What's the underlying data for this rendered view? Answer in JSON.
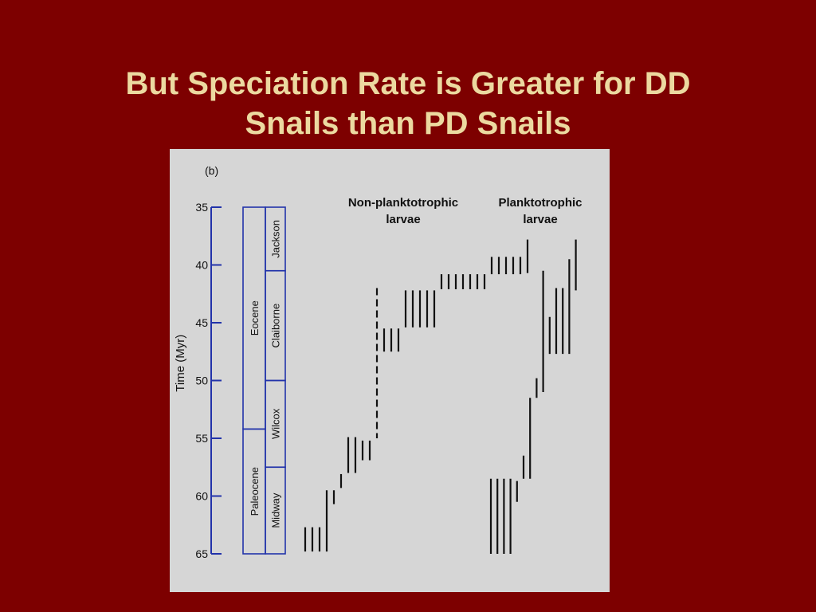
{
  "slide": {
    "title_line1": "But Speciation Rate is Greater for DD",
    "title_line2": "Snails than PD Snails"
  },
  "colors": {
    "background": "#7d0000",
    "title": "#ecd9a0",
    "figure_background": "#d6d6d6",
    "timescale": "#2233aa",
    "ranges": "#111111"
  },
  "chart_data": {
    "type": "range",
    "panel_label": "(b)",
    "ylabel": "Time (Myr)",
    "ylim": [
      35,
      65
    ],
    "yticks": [
      35,
      40,
      45,
      50,
      55,
      60,
      65
    ],
    "epochs": [
      {
        "name": "Eocene",
        "start": 35,
        "end": 54.2
      },
      {
        "name": "Paleocene",
        "start": 54.2,
        "end": 65
      }
    ],
    "stages": [
      {
        "name": "Jackson",
        "start": 35,
        "end": 40.5
      },
      {
        "name": "Claiborne",
        "start": 40.5,
        "end": 50
      },
      {
        "name": "Wilcox",
        "start": 50,
        "end": 57.5
      },
      {
        "name": "Midway",
        "start": 57.5,
        "end": 65
      }
    ],
    "series": [
      {
        "name": "Non-planktotrophic larvae",
        "name_lines": [
          "Non-planktotrophic",
          "larvae"
        ],
        "ranges": [
          {
            "start": 62.7,
            "end": 64.8
          },
          {
            "start": 62.7,
            "end": 64.8
          },
          {
            "start": 62.7,
            "end": 64.8
          },
          {
            "start": 59.5,
            "end": 64.8
          },
          {
            "start": 59.5,
            "end": 60.7
          },
          {
            "start": 58.1,
            "end": 59.3
          },
          {
            "start": 54.9,
            "end": 58.0
          },
          {
            "start": 54.9,
            "end": 58.0
          },
          {
            "start": 55.2,
            "end": 56.9
          },
          {
            "start": 55.2,
            "end": 56.9
          },
          {
            "start": 42.0,
            "end": 55.0,
            "dashed": true
          },
          {
            "start": 45.5,
            "end": 47.5
          },
          {
            "start": 45.5,
            "end": 47.5
          },
          {
            "start": 45.5,
            "end": 47.5
          },
          {
            "start": 42.2,
            "end": 45.4
          },
          {
            "start": 42.2,
            "end": 45.4
          },
          {
            "start": 42.2,
            "end": 45.4
          },
          {
            "start": 42.2,
            "end": 45.4
          },
          {
            "start": 42.2,
            "end": 45.4
          },
          {
            "start": 40.8,
            "end": 42.1
          },
          {
            "start": 40.8,
            "end": 42.1
          },
          {
            "start": 40.8,
            "end": 42.1
          },
          {
            "start": 40.8,
            "end": 42.1
          },
          {
            "start": 40.8,
            "end": 42.1
          },
          {
            "start": 40.8,
            "end": 42.1
          },
          {
            "start": 40.8,
            "end": 42.1
          },
          {
            "start": 39.3,
            "end": 40.8
          },
          {
            "start": 39.3,
            "end": 40.8
          },
          {
            "start": 39.3,
            "end": 40.8
          },
          {
            "start": 39.3,
            "end": 40.8
          },
          {
            "start": 39.3,
            "end": 40.8
          },
          {
            "start": 37.8,
            "end": 40.7
          }
        ]
      },
      {
        "name": "Planktotrophic larvae",
        "name_lines": [
          "Planktotrophic",
          "larvae"
        ],
        "ranges": [
          {
            "start": 58.5,
            "end": 65.0
          },
          {
            "start": 58.5,
            "end": 65.0
          },
          {
            "start": 58.5,
            "end": 65.0
          },
          {
            "start": 58.5,
            "end": 65.0
          },
          {
            "start": 58.7,
            "end": 60.5
          },
          {
            "start": 56.5,
            "end": 58.5
          },
          {
            "start": 51.5,
            "end": 58.5
          },
          {
            "start": 49.8,
            "end": 51.5
          },
          {
            "start": 40.5,
            "end": 51.0
          },
          {
            "start": 44.5,
            "end": 47.7
          },
          {
            "start": 42.0,
            "end": 47.7
          },
          {
            "start": 42.0,
            "end": 47.7
          },
          {
            "start": 39.5,
            "end": 47.7
          },
          {
            "start": 37.8,
            "end": 42.2
          }
        ]
      }
    ]
  }
}
